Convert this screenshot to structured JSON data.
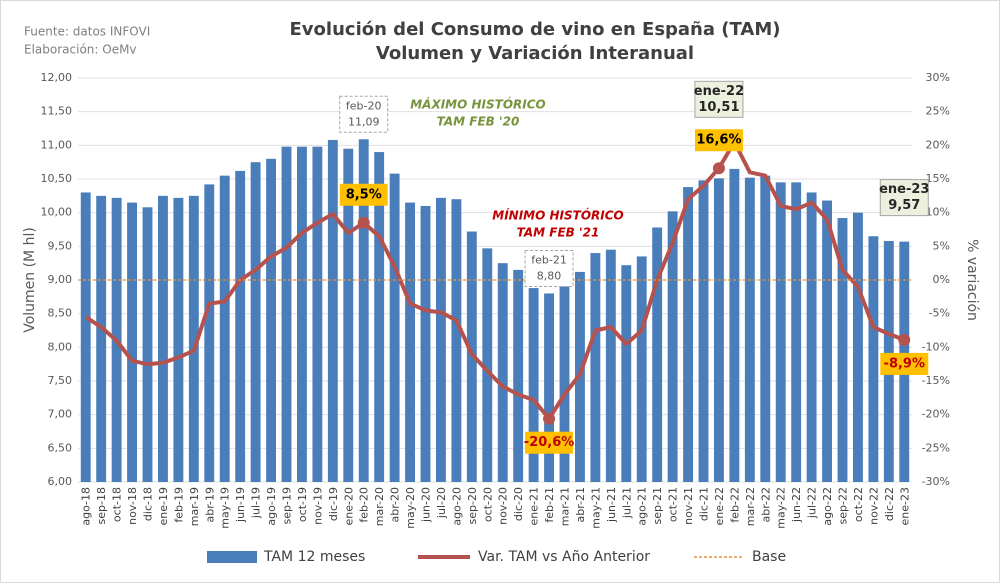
{
  "chart_data": {
    "type": "bar_line",
    "title": [
      "Evolución del Consumo de vino en España (TAM)",
      "Volumen y Variación Interanual"
    ],
    "source": [
      "Fuente: datos INFOVI",
      "Elaboración: OeMv"
    ],
    "y_label": "Volumen (M hl)",
    "y2_label": "% variación",
    "categories": [
      "ago-18",
      "sep-18",
      "oct-18",
      "nov-18",
      "dic-18",
      "ene-19",
      "feb-19",
      "mar-19",
      "abr-19",
      "may-19",
      "jun-19",
      "jul-19",
      "ago-19",
      "sep-19",
      "oct-19",
      "nov-19",
      "dic-19",
      "ene-20",
      "feb-20",
      "mar-20",
      "abr-20",
      "may-20",
      "jun-20",
      "jul-20",
      "ago-20",
      "sep-20",
      "oct-20",
      "nov-20",
      "dic-20",
      "ene-21",
      "feb-21",
      "mar-21",
      "abr-21",
      "may-21",
      "jun-21",
      "jul-21",
      "ago-21",
      "sep-21",
      "oct-21",
      "nov-21",
      "dic-21",
      "ene-22",
      "feb-22",
      "mar-22",
      "abr-22",
      "may-22",
      "jun-22",
      "jul-22",
      "ago-22",
      "sep-22",
      "oct-22",
      "nov-22",
      "dic-22",
      "ene-23"
    ],
    "series": [
      {
        "name": "TAM 12 meses",
        "type": "bar",
        "color": "#4a7ebb",
        "values": [
          10.3,
          10.25,
          10.22,
          10.15,
          10.08,
          10.25,
          10.22,
          10.25,
          10.42,
          10.55,
          10.62,
          10.75,
          10.8,
          10.98,
          10.98,
          10.98,
          11.08,
          10.95,
          11.09,
          10.9,
          10.58,
          10.15,
          10.1,
          10.22,
          10.2,
          9.72,
          9.47,
          9.25,
          9.15,
          8.88,
          8.8,
          8.95,
          9.12,
          9.4,
          9.45,
          9.22,
          9.35,
          9.78,
          10.02,
          10.38,
          10.48,
          10.51,
          10.65,
          10.52,
          10.55,
          10.45,
          10.45,
          10.3,
          10.18,
          9.92,
          10.0,
          9.65,
          9.58,
          9.57
        ],
        "value_labels": [
          null,
          null,
          null,
          null,
          null,
          null,
          null,
          null,
          null,
          null,
          null,
          null,
          null,
          null,
          null,
          null,
          null,
          null,
          "11,09",
          null,
          null,
          null,
          null,
          null,
          null,
          null,
          null,
          null,
          null,
          null,
          "8,80",
          null,
          null,
          null,
          null,
          null,
          null,
          null,
          null,
          null,
          null,
          "10,51",
          null,
          null,
          null,
          null,
          null,
          null,
          null,
          null,
          null,
          null,
          null,
          "9,57"
        ]
      },
      {
        "name": "Var. TAM vs Año Anterior",
        "type": "line",
        "axis": "y2",
        "color": "#b5524e",
        "values": [
          -5.5,
          -7,
          -9,
          -12,
          -12.5,
          -12.3,
          -11.5,
          -10.5,
          -3.5,
          -3.2,
          0,
          1.5,
          3.5,
          4.8,
          7,
          8.5,
          9.8,
          7,
          8.5,
          6.5,
          2,
          -3.5,
          -4.5,
          -4.8,
          -6,
          -11,
          -13.5,
          -15.8,
          -17,
          -17.8,
          -20.6,
          -17,
          -14,
          -7.5,
          -7,
          -9.5,
          -7.5,
          0,
          5.5,
          12,
          14,
          16.6,
          20.5,
          16,
          15.5,
          11,
          10.5,
          11.5,
          9,
          1.5,
          -1,
          -7,
          -8,
          -8.9
        ],
        "value_labels": [
          null,
          null,
          null,
          null,
          null,
          null,
          null,
          null,
          null,
          null,
          null,
          null,
          null,
          null,
          null,
          null,
          null,
          null,
          "8,5%",
          null,
          null,
          null,
          null,
          null,
          null,
          null,
          null,
          null,
          null,
          null,
          "-20,6%",
          null,
          null,
          null,
          null,
          null,
          null,
          null,
          null,
          null,
          null,
          "16,6%",
          null,
          null,
          null,
          null,
          null,
          null,
          null,
          null,
          null,
          null,
          null,
          "-8,9%"
        ]
      }
    ],
    "reference_line": {
      "name": "Base",
      "value": 0,
      "axis": "y2",
      "color": "#e69138"
    },
    "ylim": [
      6,
      12
    ],
    "yticks": [
      {
        "value": 6,
        "label": "6,00"
      },
      {
        "value": 6.5,
        "label": "6,50"
      },
      {
        "value": 7,
        "label": "7,00"
      },
      {
        "value": 7.5,
        "label": "7,50"
      },
      {
        "value": 8,
        "label": "8,00"
      },
      {
        "value": 8.5,
        "label": "8,50"
      },
      {
        "value": 9,
        "label": "9,00"
      },
      {
        "value": 9.5,
        "label": "9,50"
      },
      {
        "value": 10,
        "label": "10,00"
      },
      {
        "value": 10.5,
        "label": "10,50"
      },
      {
        "value": 11,
        "label": "11,00"
      },
      {
        "value": 11.5,
        "label": "11,50"
      },
      {
        "value": 12,
        "label": "12,00"
      }
    ],
    "y2lim": [
      -30,
      30
    ],
    "y2ticks": [
      {
        "value": -30,
        "label": "-30%"
      },
      {
        "value": -25,
        "label": "-25%"
      },
      {
        "value": -20,
        "label": "-20%"
      },
      {
        "value": -15,
        "label": "-15%"
      },
      {
        "value": -10,
        "label": "-10%"
      },
      {
        "value": -5,
        "label": "-5%"
      },
      {
        "value": 0,
        "label": "0%"
      },
      {
        "value": 5,
        "label": "5%"
      },
      {
        "value": 10,
        "label": "10%"
      },
      {
        "value": 15,
        "label": "15%"
      },
      {
        "value": 20,
        "label": "20%"
      },
      {
        "value": 25,
        "label": "25%"
      },
      {
        "value": 30,
        "label": "30%"
      }
    ],
    "grid": true,
    "legend": "bottom",
    "annotations": [
      {
        "text": [
          "MÁXIMO HISTÓRICO",
          "TAM FEB '20"
        ],
        "color": "#77933c"
      },
      {
        "text": [
          "MÍNIMO HISTÓRICO",
          "TAM FEB '21"
        ],
        "color": "#c00000"
      }
    ]
  }
}
